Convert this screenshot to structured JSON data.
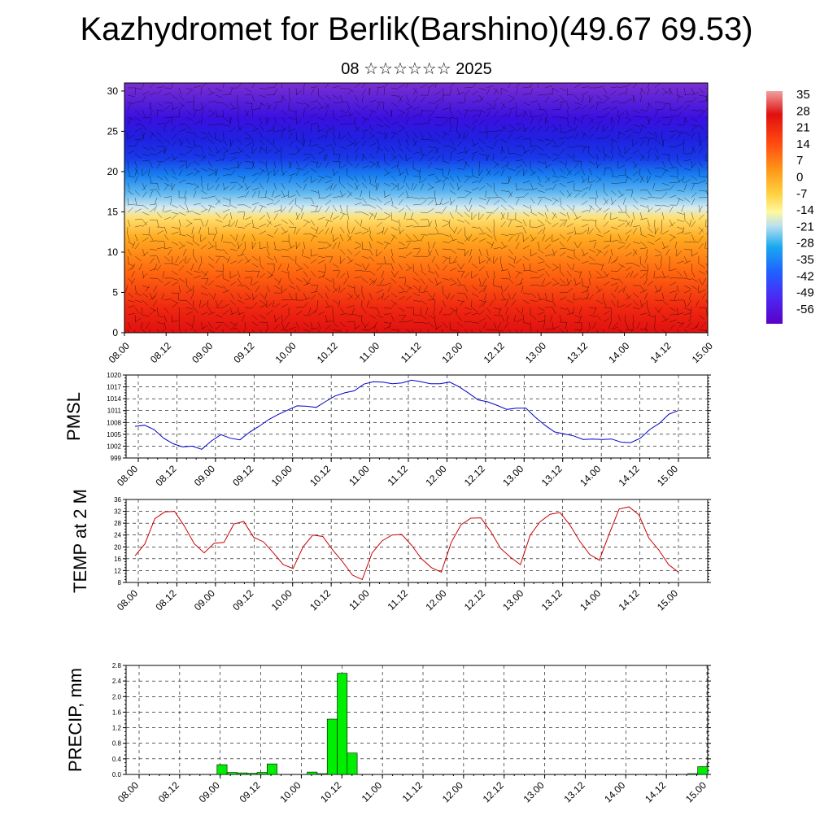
{
  "title": "Kazhydromet for Berlik(Barshino)(49.67 69.53)",
  "subtitle": "08 ☆☆☆☆☆☆ 2025",
  "colors": {
    "pmsl": "#0000cc",
    "temp": "#cc0000",
    "precip": "#00ee00"
  },
  "chart_data": [
    {
      "type": "heatmap",
      "title": "",
      "xlabel": "",
      "ylabel": "",
      "x_tick_labels": [
        "08.00",
        "08.12",
        "09.00",
        "09.12",
        "10.00",
        "10.12",
        "11.00",
        "11.12",
        "12.00",
        "12.12",
        "13.00",
        "13.12",
        "14.00",
        "14.12",
        "15.00"
      ],
      "y_ticks": [
        0,
        5,
        10,
        15,
        20,
        25,
        30
      ],
      "ylim": [
        0,
        31
      ],
      "colorbar_labels": [
        "35",
        "28",
        "21",
        "14",
        "7",
        "0",
        "-7",
        "-14",
        "-21",
        "-28",
        "-35",
        "-42",
        "-49",
        "-56"
      ],
      "colorbar_range": [
        -60,
        38
      ]
    },
    {
      "type": "line",
      "ylabel": "PMSL",
      "ylim": [
        999,
        1020
      ],
      "y_ticks": [
        999,
        1002,
        1005,
        1008,
        1011,
        1014,
        1017,
        1020
      ],
      "x_tick_labels": [
        "08.00",
        "08.12",
        "09.00",
        "09.12",
        "10.00",
        "10.12",
        "11.00",
        "11.12",
        "12.00",
        "12.12",
        "13.00",
        "13.12",
        "14.00",
        "14.12",
        "15.00"
      ],
      "values": [
        1007,
        1007.3,
        1006.2,
        1004,
        1002.6,
        1001.8,
        1002,
        1001.2,
        1003.3,
        1004.9,
        1004,
        1003.6,
        1005.5,
        1007,
        1008.7,
        1010,
        1011.1,
        1012.2,
        1012.1,
        1011.8,
        1013.3,
        1014.7,
        1015.5,
        1016,
        1017.7,
        1018.3,
        1018.2,
        1017.8,
        1018,
        1018.7,
        1018.3,
        1017.8,
        1017.8,
        1018.2,
        1017,
        1015.4,
        1013.7,
        1013.2,
        1012.3,
        1011.3,
        1011.6,
        1011.6,
        1009.3,
        1007.3,
        1005.6,
        1005.1,
        1004.6,
        1003.7,
        1003.8,
        1003.7,
        1003.8,
        1003,
        1002.9,
        1004,
        1006.2,
        1007.8,
        1010.1,
        1011
      ],
      "x_range_index": [
        0.3,
        57.3
      ]
    },
    {
      "type": "line",
      "ylabel": "TEMP at 2 M",
      "ylim": [
        8,
        36
      ],
      "y_ticks": [
        8,
        12,
        16,
        20,
        24,
        28,
        32,
        36
      ],
      "x_tick_labels": [
        "08.00",
        "08.12",
        "09.00",
        "09.12",
        "10.00",
        "10.12",
        "11.00",
        "11.12",
        "12.00",
        "12.12",
        "13.00",
        "13.12",
        "14.00",
        "14.12",
        "15.00"
      ],
      "values": [
        17,
        21,
        29.5,
        31.8,
        32,
        27,
        21,
        18,
        21.2,
        21.5,
        27.7,
        28.6,
        23.3,
        21.7,
        18,
        14,
        12.7,
        20,
        24,
        23.5,
        19,
        15,
        10.5,
        9,
        18,
        22,
        24,
        24.2,
        20.5,
        16,
        13,
        11.5,
        21.5,
        27.5,
        29.7,
        29.8,
        25.2,
        19.5,
        16.5,
        14,
        24,
        28.5,
        31,
        31.6,
        27.5,
        22,
        17.5,
        15.5,
        24.5,
        32.8,
        33.5,
        30.8,
        23,
        19,
        14,
        11.5
      ],
      "x_range_index": [
        0.7,
        55.7
      ]
    },
    {
      "type": "bar",
      "ylabel": "PRECIP, mm",
      "ylim": [
        0,
        2.8
      ],
      "y_ticks": [
        0.0,
        0.4,
        0.8,
        1.2,
        1.6,
        2.0,
        2.4,
        2.8
      ],
      "x_tick_labels": [
        "08.00",
        "08.12",
        "09.00",
        "09.12",
        "10.00",
        "10.12",
        "11.00",
        "11.12",
        "12.00",
        "12.12",
        "13.00",
        "13.12",
        "14.00",
        "14.12",
        "15.00"
      ],
      "values": [
        0,
        0,
        0,
        0,
        0,
        0,
        0,
        0,
        0,
        0.25,
        0.05,
        0.04,
        0.03,
        0.05,
        0.27,
        0,
        0,
        0,
        0.06,
        0.02,
        1.42,
        2.6,
        0.55,
        0,
        0,
        0,
        0,
        0,
        0,
        0,
        0,
        0,
        0,
        0,
        0,
        0,
        0,
        0,
        0,
        0,
        0,
        0,
        0,
        0,
        0,
        0,
        0,
        0,
        0,
        0,
        0,
        0,
        0,
        0,
        0,
        0,
        0.02,
        0.2
      ]
    }
  ]
}
